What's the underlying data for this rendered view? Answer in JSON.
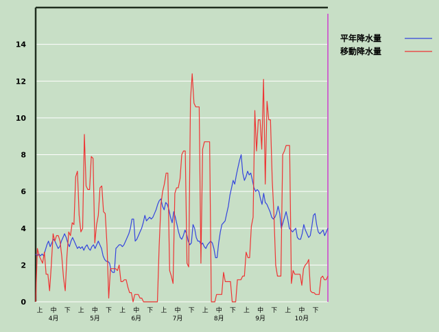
{
  "chart_data": {
    "type": "line",
    "title": "",
    "xlabel": "",
    "ylabel": "",
    "ylim": [
      0,
      16
    ],
    "yticks": [
      0,
      2,
      4,
      6,
      8,
      10,
      12,
      14
    ],
    "grid": true,
    "legend_position": "top-right",
    "x_period_labels": [
      "上",
      "中",
      "下",
      "上",
      "中",
      "下",
      "上",
      "中",
      "下",
      "上",
      "中",
      "下",
      "上",
      "中",
      "下",
      "上",
      "中",
      "下",
      "上",
      "中",
      "下"
    ],
    "x_month_labels": [
      "4月",
      "5月",
      "6月",
      "7月",
      "8月",
      "9月",
      "10月"
    ],
    "colors": {
      "background": "#c8dfc6",
      "grid": "#ffffff",
      "marker_line": "#cc66cc"
    },
    "series": [
      {
        "name": "平年降水量",
        "color": "#3344dd",
        "values": [
          2.6,
          2.5,
          2.6,
          2.5,
          2.6,
          2.5,
          2.8,
          3.1,
          3.3,
          3.0,
          3.2,
          3.4,
          3.3,
          3.1,
          2.9,
          3.0,
          3.3,
          3.5,
          3.7,
          3.5,
          3.2,
          3.0,
          3.3,
          3.5,
          3.3,
          3.1,
          2.9,
          3.0,
          2.9,
          3.0,
          2.8,
          3.0,
          3.1,
          2.9,
          2.8,
          3.0,
          3.1,
          2.9,
          3.1,
          3.3,
          3.1,
          2.9,
          2.5,
          2.3,
          2.2,
          2.2,
          2.1,
          1.7,
          1.6,
          1.6,
          2.9,
          3.0,
          3.1,
          3.1,
          3.0,
          3.1,
          3.3,
          3.5,
          3.7,
          4.0,
          4.5,
          4.5,
          3.3,
          3.4,
          3.6,
          3.8,
          4.0,
          4.3,
          4.7,
          4.4,
          4.5,
          4.6,
          4.5,
          4.6,
          4.8,
          5.0,
          5.3,
          5.5,
          5.6,
          5.2,
          5.0,
          5.4,
          5.3,
          5.0,
          4.6,
          4.3,
          4.9,
          4.6,
          4.2,
          3.8,
          3.5,
          3.4,
          3.6,
          3.9,
          3.7,
          3.3,
          3.1,
          3.2,
          4.2,
          4.0,
          3.5,
          3.3,
          3.3,
          3.1,
          3.2,
          3.0,
          2.9,
          3.1,
          3.2,
          3.3,
          3.2,
          2.9,
          2.4,
          2.4,
          3.2,
          3.8,
          4.2,
          4.3,
          4.4,
          4.8,
          5.2,
          5.8,
          6.2,
          6.6,
          6.4,
          6.9,
          7.3,
          7.7,
          8.0,
          7.0,
          6.6,
          6.8,
          7.1,
          6.9,
          7.0,
          6.6,
          6.2,
          6.0,
          6.1,
          6.0,
          5.6,
          5.3,
          5.9,
          5.4,
          5.3,
          5.1,
          4.9,
          4.6,
          4.5,
          4.6,
          4.8,
          5.2,
          4.8,
          4.0,
          4.3,
          4.6,
          4.9,
          4.5,
          4.0,
          3.9,
          3.8,
          3.9,
          4.0,
          3.5,
          3.4,
          3.4,
          3.7,
          4.2,
          3.9,
          3.7,
          3.5,
          3.6,
          4.1,
          4.7,
          4.8,
          4.2,
          3.8,
          3.7,
          3.8,
          3.9,
          3.6,
          3.8,
          4.0
        ]
      },
      {
        "name": "移動降水量",
        "color": "#ee3333",
        "values": [
          0,
          2.9,
          2.5,
          2.3,
          2.1,
          2.7,
          1.5,
          1.5,
          0.6,
          2.0,
          3.7,
          3.3,
          3.6,
          3.6,
          3.3,
          2.5,
          1.3,
          0.6,
          2.5,
          3.8,
          3.6,
          4.3,
          4.2,
          6.8,
          7.1,
          4.7,
          3.8,
          4.0,
          9.1,
          6.3,
          6.1,
          6.1,
          7.9,
          7.8,
          3.2,
          4.2,
          4.7,
          6.2,
          6.3,
          4.9,
          4.8,
          3.1,
          0.2,
          1.8,
          1.8,
          1.8,
          1.8,
          1.7,
          2.0,
          1.1,
          1.1,
          1.2,
          1.2,
          0.8,
          0.5,
          0.5,
          0,
          0.4,
          0.4,
          0.4,
          0.2,
          0.2,
          0,
          0,
          0,
          0,
          0,
          0,
          0,
          0,
          0,
          3.0,
          5.3,
          6.0,
          6.4,
          7.0,
          7.0,
          1.7,
          1.4,
          1.0,
          5.9,
          6.2,
          6.2,
          6.7,
          8.0,
          8.2,
          8.2,
          2.1,
          1.9,
          11.0,
          12.4,
          10.8,
          10.6,
          10.6,
          10.6,
          2.1,
          8.3,
          8.7,
          8.7,
          8.7,
          8.7,
          0,
          0,
          0,
          0.4,
          0.4,
          0.4,
          0.4,
          1.6,
          1.1,
          1.1,
          1.1,
          1.1,
          0,
          0,
          0,
          1.2,
          1.2,
          1.2,
          1.4,
          1.4,
          2.7,
          2.4,
          2.4,
          4.1,
          4.6,
          10.4,
          8.2,
          9.9,
          9.9,
          8.3,
          12.1,
          6.4,
          10.9,
          9.9,
          9.9,
          6.6,
          4.7,
          2.0,
          1.4,
          1.4,
          1.4,
          8.0,
          8.2,
          8.5,
          8.5,
          8.5,
          1.0,
          1.7,
          1.5,
          1.5,
          1.5,
          1.5,
          0.9,
          1.8,
          2.0,
          2.1,
          2.3,
          0.6,
          0.5,
          0.5,
          0.4,
          0.4,
          0.4,
          1.3,
          1.4,
          1.2,
          1.2,
          1.4
        ]
      }
    ]
  }
}
